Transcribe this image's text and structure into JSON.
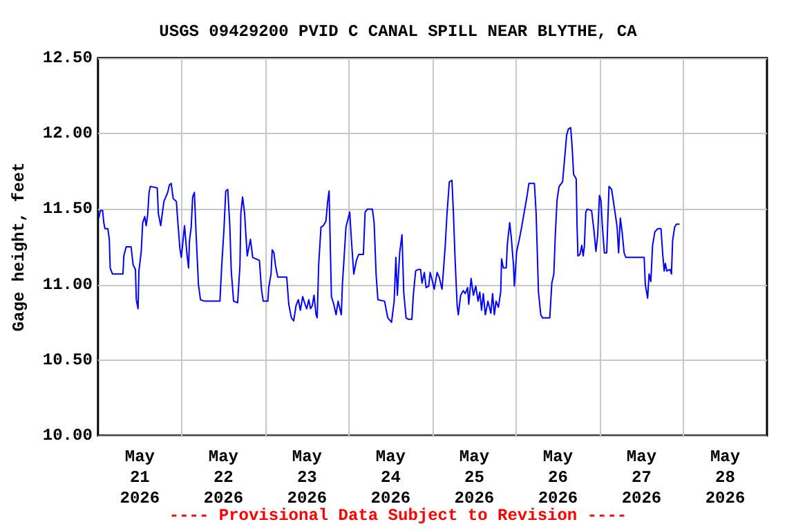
{
  "chart_data": {
    "type": "line",
    "title": "USGS 09429200 PVID C CANAL SPILL NEAR BLYTHE, CA",
    "ylabel": "Gage height, feet",
    "annotations": [
      "---- Provisional Data Subject to Revision ----"
    ],
    "xlim": [
      "2026-05-21T00:00",
      "2026-05-29T00:00"
    ],
    "xticks": [
      {
        "value": "2026-05-21T12:00",
        "label": "May\n21\n2026"
      },
      {
        "value": "2026-05-22T12:00",
        "label": "May\n22\n2026"
      },
      {
        "value": "2026-05-23T12:00",
        "label": "May\n23\n2026"
      },
      {
        "value": "2026-05-24T12:00",
        "label": "May\n24\n2026"
      },
      {
        "value": "2026-05-25T12:00",
        "label": "May\n25\n2026"
      },
      {
        "value": "2026-05-26T12:00",
        "label": "May\n26\n2026"
      },
      {
        "value": "2026-05-27T12:00",
        "label": "May\n27\n2026"
      },
      {
        "value": "2026-05-28T12:00",
        "label": "May\n28\n2026"
      },
      {
        "value": "2026-05-22T00:00",
        "label": null
      },
      {
        "value": "2026-05-23T00:00",
        "label": null
      },
      {
        "value": "2026-05-24T00:00",
        "label": null
      },
      {
        "value": "2026-05-25T00:00",
        "label": null
      },
      {
        "value": "2026-05-26T00:00",
        "label": null
      },
      {
        "value": "2026-05-27T00:00",
        "label": null
      },
      {
        "value": "2026-05-28T00:00",
        "label": null
      }
    ],
    "ylim": [
      10,
      12.5
    ],
    "yticks": [
      {
        "value": 10,
        "label": "10.00"
      },
      {
        "value": 10.5,
        "label": "10.50"
      },
      {
        "value": 11,
        "label": "11.00"
      },
      {
        "value": 11.5,
        "label": "11.50"
      },
      {
        "value": 12,
        "label": "12.00"
      },
      {
        "value": 12.5,
        "label": "12.50"
      }
    ],
    "grid": true,
    "marker": "none",
    "line_style": "solid",
    "series": [
      {
        "color": "#0000ff",
        "x": [
          "2026-05-21T00:15",
          "2026-05-21T00:40",
          "2026-05-21T01:20",
          "2026-05-21T01:40",
          "2026-05-21T02:00",
          "2026-05-21T02:50",
          "2026-05-21T03:15",
          "2026-05-21T03:30",
          "2026-05-21T04:10",
          "2026-05-21T07:10",
          "2026-05-21T07:25",
          "2026-05-21T08:05",
          "2026-05-21T09:30",
          "2026-05-21T10:05",
          "2026-05-21T10:45",
          "2026-05-21T11:00",
          "2026-05-21T11:30",
          "2026-05-21T11:45",
          "2026-05-21T12:25",
          "2026-05-21T12:50",
          "2026-05-21T13:25",
          "2026-05-21T13:50",
          "2026-05-21T14:15",
          "2026-05-21T14:40",
          "2026-05-21T15:00",
          "2026-05-21T17:00",
          "2026-05-21T17:20",
          "2026-05-21T18:00",
          "2026-05-21T18:55",
          "2026-05-21T20:00",
          "2026-05-21T20:30",
          "2026-05-21T21:00",
          "2026-05-21T21:35",
          "2026-05-21T22:30",
          "2026-05-21T22:50",
          "2026-05-21T23:30",
          "2026-05-21T23:55",
          "2026-05-22T00:50",
          "2026-05-22T01:30",
          "2026-05-22T02:00",
          "2026-05-22T02:15",
          "2026-05-22T02:45",
          "2026-05-22T03:10",
          "2026-05-22T03:40",
          "2026-05-22T04:10",
          "2026-05-22T04:50",
          "2026-05-22T05:25",
          "2026-05-22T06:40",
          "2026-05-22T11:00",
          "2026-05-22T11:30",
          "2026-05-22T12:10",
          "2026-05-22T12:40",
          "2026-05-22T13:15",
          "2026-05-22T13:50",
          "2026-05-22T14:15",
          "2026-05-22T14:55",
          "2026-05-22T16:05",
          "2026-05-22T16:45",
          "2026-05-22T17:00",
          "2026-05-22T17:30",
          "2026-05-22T18:05",
          "2026-05-22T18:25",
          "2026-05-22T18:50",
          "2026-05-22T19:45",
          "2026-05-22T20:25",
          "2026-05-22T22:20",
          "2026-05-22T22:55",
          "2026-05-22T23:25",
          "2026-05-23T00:45",
          "2026-05-23T01:00",
          "2026-05-23T01:40",
          "2026-05-23T02:00",
          "2026-05-23T02:30",
          "2026-05-23T02:55",
          "2026-05-23T03:35",
          "2026-05-23T06:10",
          "2026-05-23T06:45",
          "2026-05-23T07:30",
          "2026-05-23T08:10",
          "2026-05-23T08:50",
          "2026-05-23T09:30",
          "2026-05-23T10:05",
          "2026-05-23T10:45",
          "2026-05-23T11:25",
          "2026-05-23T11:55",
          "2026-05-23T12:30",
          "2026-05-23T13:00",
          "2026-05-23T13:30",
          "2026-05-23T14:00",
          "2026-05-23T14:35",
          "2026-05-23T14:55",
          "2026-05-23T15:20",
          "2026-05-23T16:00",
          "2026-05-23T16:40",
          "2026-05-23T17:25",
          "2026-05-23T17:55",
          "2026-05-23T18:20",
          "2026-05-23T18:35",
          "2026-05-23T19:00",
          "2026-05-23T19:40",
          "2026-05-23T20:20",
          "2026-05-23T20:55",
          "2026-05-23T21:50",
          "2026-05-23T22:10",
          "2026-05-23T22:40",
          "2026-05-23T23:10",
          "2026-05-24T00:15",
          "2026-05-24T00:45",
          "2026-05-24T01:25",
          "2026-05-24T02:10",
          "2026-05-24T02:50",
          "2026-05-24T04:10",
          "2026-05-24T04:40",
          "2026-05-24T05:20",
          "2026-05-24T06:45",
          "2026-05-24T07:15",
          "2026-05-24T07:50",
          "2026-05-24T08:20",
          "2026-05-24T10:15",
          "2026-05-24T11:10",
          "2026-05-24T12:15",
          "2026-05-24T13:00",
          "2026-05-24T13:30",
          "2026-05-24T13:55",
          "2026-05-24T14:35",
          "2026-05-24T15:15",
          "2026-05-24T15:45",
          "2026-05-24T16:25",
          "2026-05-24T17:05",
          "2026-05-24T18:05",
          "2026-05-24T18:30",
          "2026-05-24T19:10",
          "2026-05-24T19:50",
          "2026-05-24T20:35",
          "2026-05-24T21:00",
          "2026-05-24T21:40",
          "2026-05-24T22:10",
          "2026-05-24T22:55",
          "2026-05-24T23:20",
          "2026-05-25T00:00",
          "2026-05-25T00:30",
          "2026-05-25T01:20",
          "2026-05-25T01:55",
          "2026-05-25T02:45",
          "2026-05-25T03:10",
          "2026-05-25T03:40",
          "2026-05-25T04:10",
          "2026-05-25T04:50",
          "2026-05-25T05:35",
          "2026-05-25T06:00",
          "2026-05-25T06:30",
          "2026-05-25T07:05",
          "2026-05-25T07:25",
          "2026-05-25T08:05",
          "2026-05-25T08:50",
          "2026-05-25T09:25",
          "2026-05-25T10:05",
          "2026-05-25T10:25",
          "2026-05-25T11:05",
          "2026-05-25T11:45",
          "2026-05-25T12:25",
          "2026-05-25T13:05",
          "2026-05-25T13:35",
          "2026-05-25T14:05",
          "2026-05-25T14:35",
          "2026-05-25T15:10",
          "2026-05-25T15:55",
          "2026-05-25T16:45",
          "2026-05-25T17:15",
          "2026-05-25T17:45",
          "2026-05-25T18:15",
          "2026-05-25T18:55",
          "2026-05-25T19:35",
          "2026-05-25T19:50",
          "2026-05-25T20:20",
          "2026-05-25T21:10",
          "2026-05-25T21:30",
          "2026-05-25T22:10",
          "2026-05-25T22:35",
          "2026-05-25T23:15",
          "2026-05-25T23:30",
          "2026-05-26T00:10",
          "2026-05-26T00:50",
          "2026-05-26T01:35",
          "2026-05-26T02:20",
          "2026-05-26T03:10",
          "2026-05-26T03:40",
          "2026-05-26T05:15",
          "2026-05-26T05:45",
          "2026-05-26T06:25",
          "2026-05-26T07:05",
          "2026-05-26T07:35",
          "2026-05-26T09:40",
          "2026-05-26T10:15",
          "2026-05-26T10:50",
          "2026-05-26T11:15",
          "2026-05-26T11:45",
          "2026-05-26T12:20",
          "2026-05-26T13:20",
          "2026-05-26T13:50",
          "2026-05-26T14:30",
          "2026-05-26T15:00",
          "2026-05-26T15:40",
          "2026-05-26T16:05",
          "2026-05-26T16:30",
          "2026-05-26T17:15",
          "2026-05-26T17:30",
          "2026-05-26T17:45",
          "2026-05-26T18:20",
          "2026-05-26T18:50",
          "2026-05-26T19:15",
          "2026-05-26T19:35",
          "2026-05-26T20:00",
          "2026-05-26T20:25",
          "2026-05-26T21:40",
          "2026-05-26T22:20",
          "2026-05-26T22:55",
          "2026-05-26T23:25",
          "2026-05-26T23:55",
          "2026-05-27T00:20",
          "2026-05-27T00:45",
          "2026-05-27T01:20",
          "2026-05-27T02:00",
          "2026-05-27T02:40",
          "2026-05-27T03:25",
          "2026-05-27T04:15",
          "2026-05-27T05:00",
          "2026-05-27T05:25",
          "2026-05-27T05:55",
          "2026-05-27T06:25",
          "2026-05-27T07:00",
          "2026-05-27T07:30",
          "2026-05-27T12:45",
          "2026-05-27T13:05",
          "2026-05-27T13:45",
          "2026-05-27T14:10",
          "2026-05-27T14:40",
          "2026-05-27T15:10",
          "2026-05-27T15:50",
          "2026-05-27T16:40",
          "2026-05-27T17:35",
          "2026-05-27T18:05",
          "2026-05-27T18:30",
          "2026-05-27T18:50",
          "2026-05-27T19:15",
          "2026-05-27T20:10",
          "2026-05-27T20:35",
          "2026-05-27T20:55",
          "2026-05-27T21:30",
          "2026-05-27T22:00",
          "2026-05-27T22:55"
        ],
        "values": [
          11.44,
          11.49,
          11.49,
          11.41,
          11.37,
          11.37,
          11.3,
          11.11,
          11.07,
          11.07,
          11.19,
          11.25,
          11.25,
          11.13,
          11.1,
          10.9,
          10.84,
          11.09,
          11.22,
          11.41,
          11.45,
          11.39,
          11.46,
          11.61,
          11.65,
          11.64,
          11.47,
          11.39,
          11.55,
          11.61,
          11.66,
          11.67,
          11.57,
          11.55,
          11.44,
          11.24,
          11.18,
          11.39,
          11.21,
          11.11,
          11.29,
          11.38,
          11.58,
          11.61,
          11.33,
          11.0,
          10.9,
          10.89,
          10.89,
          11.12,
          11.37,
          11.62,
          11.63,
          11.39,
          11.09,
          10.89,
          10.88,
          11.13,
          11.47,
          11.58,
          11.47,
          11.34,
          11.19,
          11.3,
          11.18,
          11.16,
          10.97,
          10.89,
          10.89,
          10.98,
          11.07,
          11.23,
          11.21,
          11.13,
          11.05,
          11.05,
          10.87,
          10.78,
          10.76,
          10.86,
          10.9,
          10.83,
          10.92,
          10.87,
          10.84,
          10.9,
          10.84,
          10.86,
          10.93,
          10.8,
          10.78,
          11.13,
          11.38,
          11.39,
          11.42,
          11.55,
          11.62,
          11.35,
          10.92,
          10.87,
          10.8,
          10.89,
          10.8,
          11.01,
          11.19,
          11.38,
          11.48,
          11.29,
          11.07,
          11.16,
          11.2,
          11.2,
          11.48,
          11.5,
          11.5,
          11.41,
          11.06,
          10.9,
          10.89,
          10.78,
          10.75,
          10.89,
          11.18,
          10.93,
          11.21,
          11.33,
          10.95,
          10.78,
          10.77,
          10.77,
          10.93,
          11.09,
          11.1,
          11.1,
          11.01,
          11.08,
          10.98,
          10.99,
          11.08,
          11.02,
          10.97,
          11.08,
          11.05,
          10.97,
          11.1,
          11.26,
          11.47,
          11.68,
          11.69,
          11.48,
          11.16,
          10.86,
          10.8,
          10.93,
          10.96,
          10.94,
          10.98,
          10.87,
          11.04,
          10.93,
          10.99,
          10.89,
          10.95,
          10.83,
          10.94,
          10.8,
          10.89,
          10.81,
          10.94,
          10.8,
          10.89,
          10.85,
          10.95,
          11.17,
          11.11,
          11.11,
          11.27,
          11.41,
          11.32,
          11.13,
          10.99,
          11.22,
          11.29,
          11.38,
          11.48,
          11.59,
          11.67,
          11.67,
          11.47,
          10.95,
          10.8,
          10.78,
          10.78,
          11.01,
          11.07,
          11.33,
          11.56,
          11.65,
          11.68,
          11.81,
          11.99,
          12.03,
          12.04,
          11.91,
          11.73,
          11.7,
          11.38,
          11.19,
          11.2,
          11.26,
          11.19,
          11.25,
          11.48,
          11.5,
          11.49,
          11.36,
          11.22,
          11.33,
          11.59,
          11.56,
          11.39,
          11.21,
          11.21,
          11.65,
          11.63,
          11.5,
          11.38,
          11.21,
          11.44,
          11.35,
          11.21,
          11.18,
          11.18,
          11.0,
          10.91,
          11.07,
          11.02,
          11.26,
          11.35,
          11.37,
          11.37,
          11.2,
          11.09,
          11.14,
          11.09,
          11.1,
          11.07,
          11.29,
          11.38,
          11.4,
          11.4
        ]
      }
    ]
  }
}
